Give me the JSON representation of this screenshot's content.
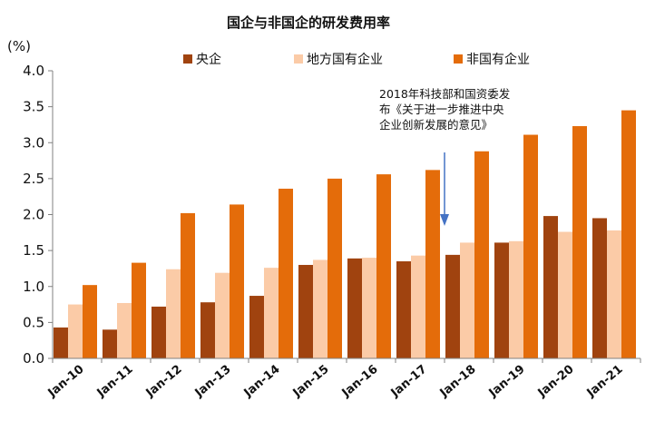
{
  "chart_data": {
    "type": "bar",
    "title": "国企与非国企的研发费用率",
    "ylabel": "(%)",
    "xlabel": "",
    "ylim": [
      0,
      4.0
    ],
    "yticks": [
      "0.0",
      "0.5",
      "1.0",
      "1.5",
      "2.0",
      "2.5",
      "3.0",
      "3.5",
      "4.0"
    ],
    "grid": false,
    "legend_position": "top",
    "categories": [
      "Jan-10",
      "Jan-11",
      "Jan-12",
      "Jan-13",
      "Jan-14",
      "Jan-15",
      "Jan-16",
      "Jan-17",
      "Jan-18",
      "Jan-19",
      "Jan-20",
      "Jan-21"
    ],
    "series": [
      {
        "name": "央企",
        "color": "#a0430f",
        "values": [
          0.43,
          0.4,
          0.72,
          0.78,
          0.87,
          1.3,
          1.39,
          1.35,
          1.44,
          1.61,
          1.98,
          1.95
        ]
      },
      {
        "name": "地方国有企业",
        "color": "#fbcba7",
        "values": [
          0.75,
          0.77,
          1.24,
          1.19,
          1.26,
          1.37,
          1.4,
          1.43,
          1.61,
          1.63,
          1.76,
          1.78
        ]
      },
      {
        "name": "非国有企业",
        "color": "#e46c0a",
        "values": [
          1.02,
          1.33,
          2.02,
          2.14,
          2.36,
          2.5,
          2.56,
          2.62,
          2.88,
          3.11,
          3.23,
          3.45
        ]
      }
    ],
    "annotation": {
      "lines": [
        "2018年科技部和国资委发",
        "布《关于进一步推进中央",
        "企业创新发展的意见》"
      ],
      "arrow_color": "#4472c4"
    }
  }
}
